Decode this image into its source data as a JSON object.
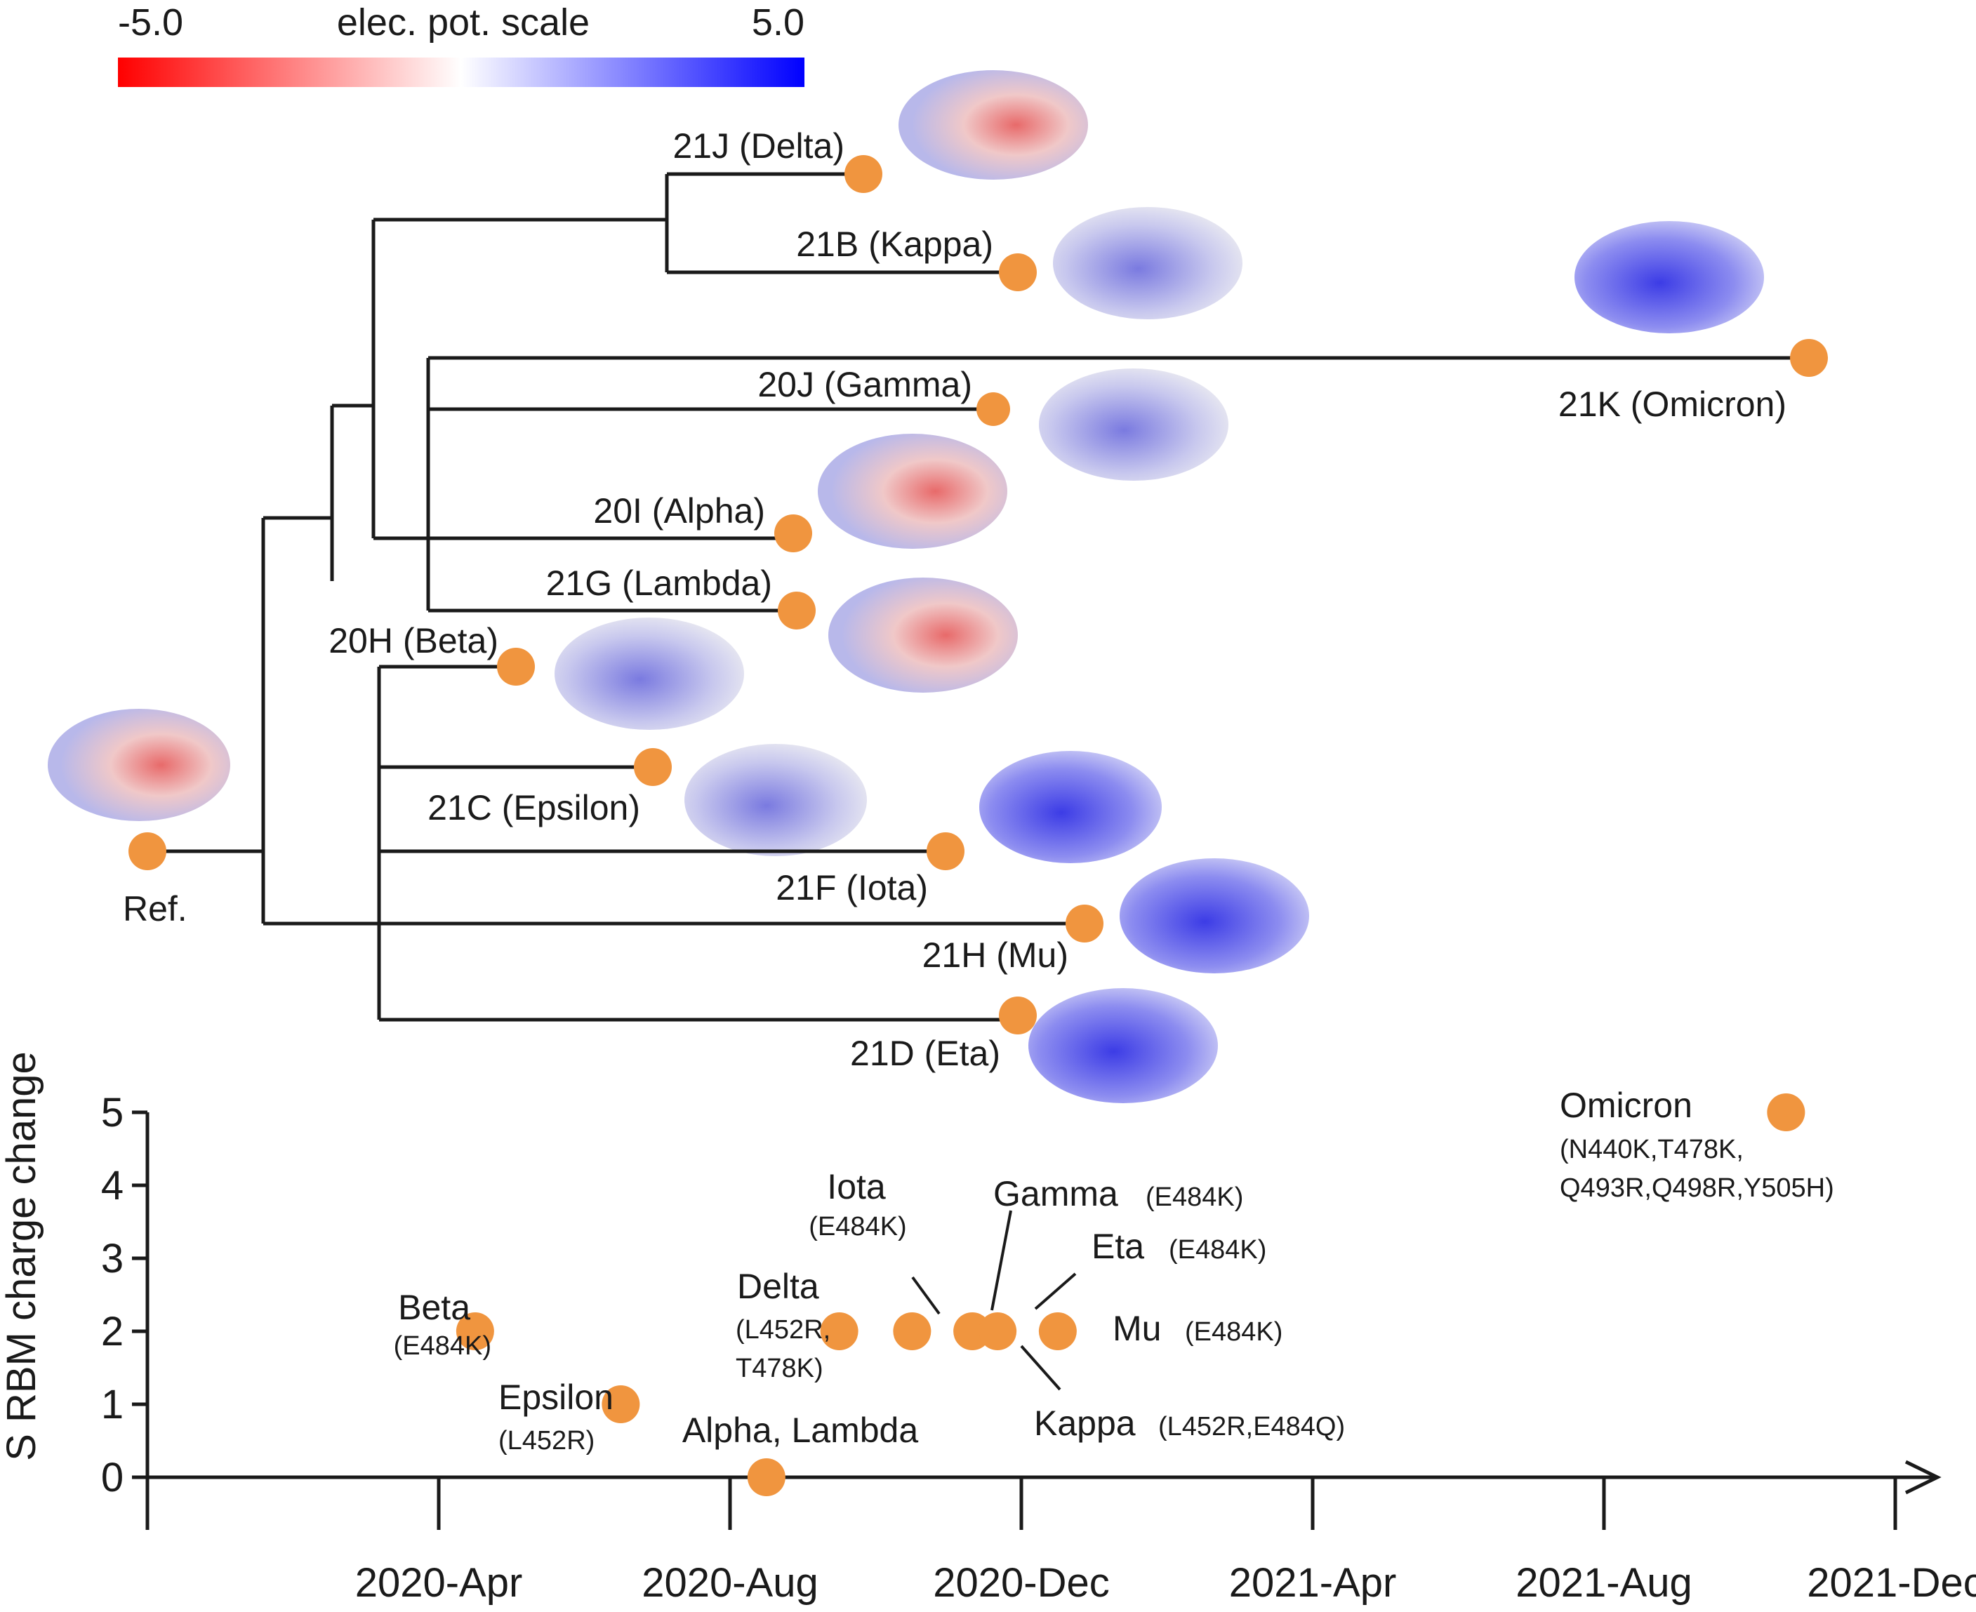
{
  "colorbar": {
    "min_label": "-5.0",
    "title": "elec. pot. scale",
    "max_label": "5.0",
    "colors": {
      "negative": "#ff0000",
      "neutral": "#ffffff",
      "positive": "#0000ff"
    }
  },
  "tree": {
    "ref_label": "Ref.",
    "nodes": [
      {
        "id": "delta",
        "label": "21J (Delta)"
      },
      {
        "id": "kappa",
        "label": "21B (Kappa)"
      },
      {
        "id": "omicron",
        "label": "21K (Omicron)"
      },
      {
        "id": "gamma",
        "label": "20J (Gamma)"
      },
      {
        "id": "alpha",
        "label": "20I (Alpha)"
      },
      {
        "id": "lambda",
        "label": "21G (Lambda)"
      },
      {
        "id": "beta",
        "label": "20H (Beta)"
      },
      {
        "id": "epsilon",
        "label": "21C (Epsilon)"
      },
      {
        "id": "iota",
        "label": "21F (Iota)"
      },
      {
        "id": "mu",
        "label": "21H (Mu)"
      },
      {
        "id": "eta",
        "label": "21D (Eta)"
      }
    ],
    "node_color": "#f0953f"
  },
  "chart_data": {
    "type": "scatter",
    "ylabel": "S RBM charge change",
    "yticks": [
      0,
      1,
      2,
      3,
      4,
      5
    ],
    "ylim": [
      0,
      5
    ],
    "xlim": [
      "2020-01",
      "2021-12"
    ],
    "xtick_labels": [
      "2020-Apr",
      "2020-Aug",
      "2020-Dec",
      "2021-Apr",
      "2021-Aug",
      "2021-Dec"
    ],
    "series": [
      {
        "name": "Beta",
        "mutations": "(E484K)",
        "x": "2020-05",
        "y": 2
      },
      {
        "name": "Epsilon",
        "mutations": "(L452R)",
        "x": "2020-07",
        "y": 1
      },
      {
        "name": "Alpha, Lambda",
        "mutations": "",
        "x": "2020-09",
        "y": 0
      },
      {
        "name": "Delta",
        "mutations": "(L452R, T478K)",
        "x": "2020-10",
        "y": 2
      },
      {
        "name": "Iota",
        "mutations": "(E484K)",
        "x": "2020-11",
        "y": 2
      },
      {
        "name": "Gamma",
        "mutations": "(E484K)",
        "x": "2020-12",
        "y": 2
      },
      {
        "name": "Kappa",
        "mutations": "(L452R,E484Q)",
        "x": "2020-12",
        "y": 2
      },
      {
        "name": "Mu",
        "mutations": "(E484K)",
        "x": "2021-01",
        "y": 2
      },
      {
        "name": "Omicron",
        "mutations": "(N440K,T478K, Q493R,Q498R,Y505H)",
        "x": "2021-11",
        "y": 5
      }
    ],
    "point_color": "#f0953f"
  }
}
